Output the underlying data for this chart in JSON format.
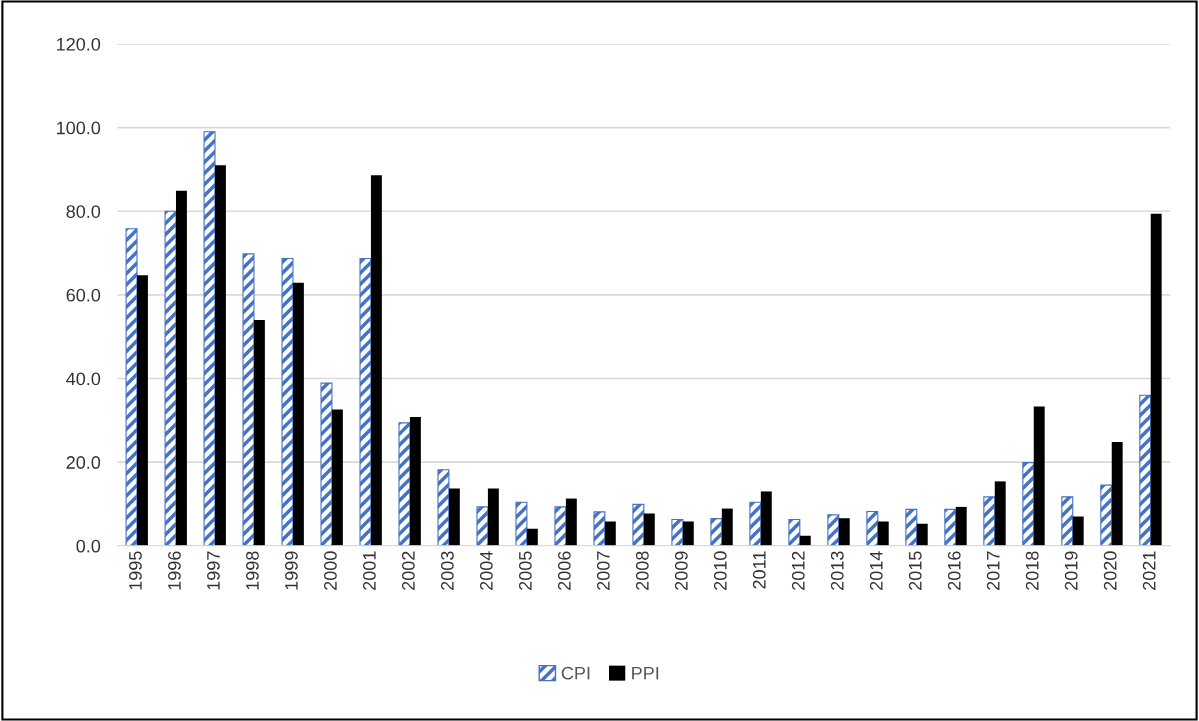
{
  "chart_data": {
    "type": "bar",
    "categories": [
      "1995",
      "1996",
      "1997",
      "1998",
      "1999",
      "2000",
      "2001",
      "2002",
      "2003",
      "2004",
      "2005",
      "2006",
      "2007",
      "2008",
      "2009",
      "2010",
      "2011",
      "2012",
      "2013",
      "2014",
      "2015",
      "2016",
      "2017",
      "2018",
      "2019",
      "2020",
      "2021"
    ],
    "series": [
      {
        "name": "CPI",
        "color": "#4472c4",
        "values": [
          75.8,
          80.0,
          99.0,
          69.8,
          68.7,
          38.9,
          68.7,
          29.4,
          18.2,
          9.3,
          10.4,
          9.3,
          8.1,
          9.9,
          6.3,
          6.5,
          10.4,
          6.3,
          7.4,
          8.2,
          8.7,
          8.7,
          11.7,
          19.9,
          11.7,
          14.5,
          36.0
        ]
      },
      {
        "name": "PPI",
        "color": "#000000",
        "values": [
          64.7,
          84.9,
          91.0,
          54.0,
          62.9,
          32.6,
          88.6,
          30.8,
          13.7,
          13.7,
          4.1,
          11.3,
          5.8,
          7.7,
          5.8,
          8.9,
          13.0,
          2.4,
          6.6,
          5.8,
          5.3,
          9.3,
          15.4,
          33.3,
          7.0,
          24.8,
          79.4
        ]
      }
    ],
    "ylim": [
      0,
      120
    ],
    "yticks": [
      {
        "value": 0,
        "label": "0.0"
      },
      {
        "value": 20,
        "label": "20.0"
      },
      {
        "value": 40,
        "label": "40.0"
      },
      {
        "value": 60,
        "label": "60.0"
      },
      {
        "value": 80,
        "label": "80.0"
      },
      {
        "value": 100,
        "label": "100.0"
      },
      {
        "value": 120,
        "label": "120.0"
      }
    ],
    "grid": "y",
    "legend": "bottom"
  }
}
